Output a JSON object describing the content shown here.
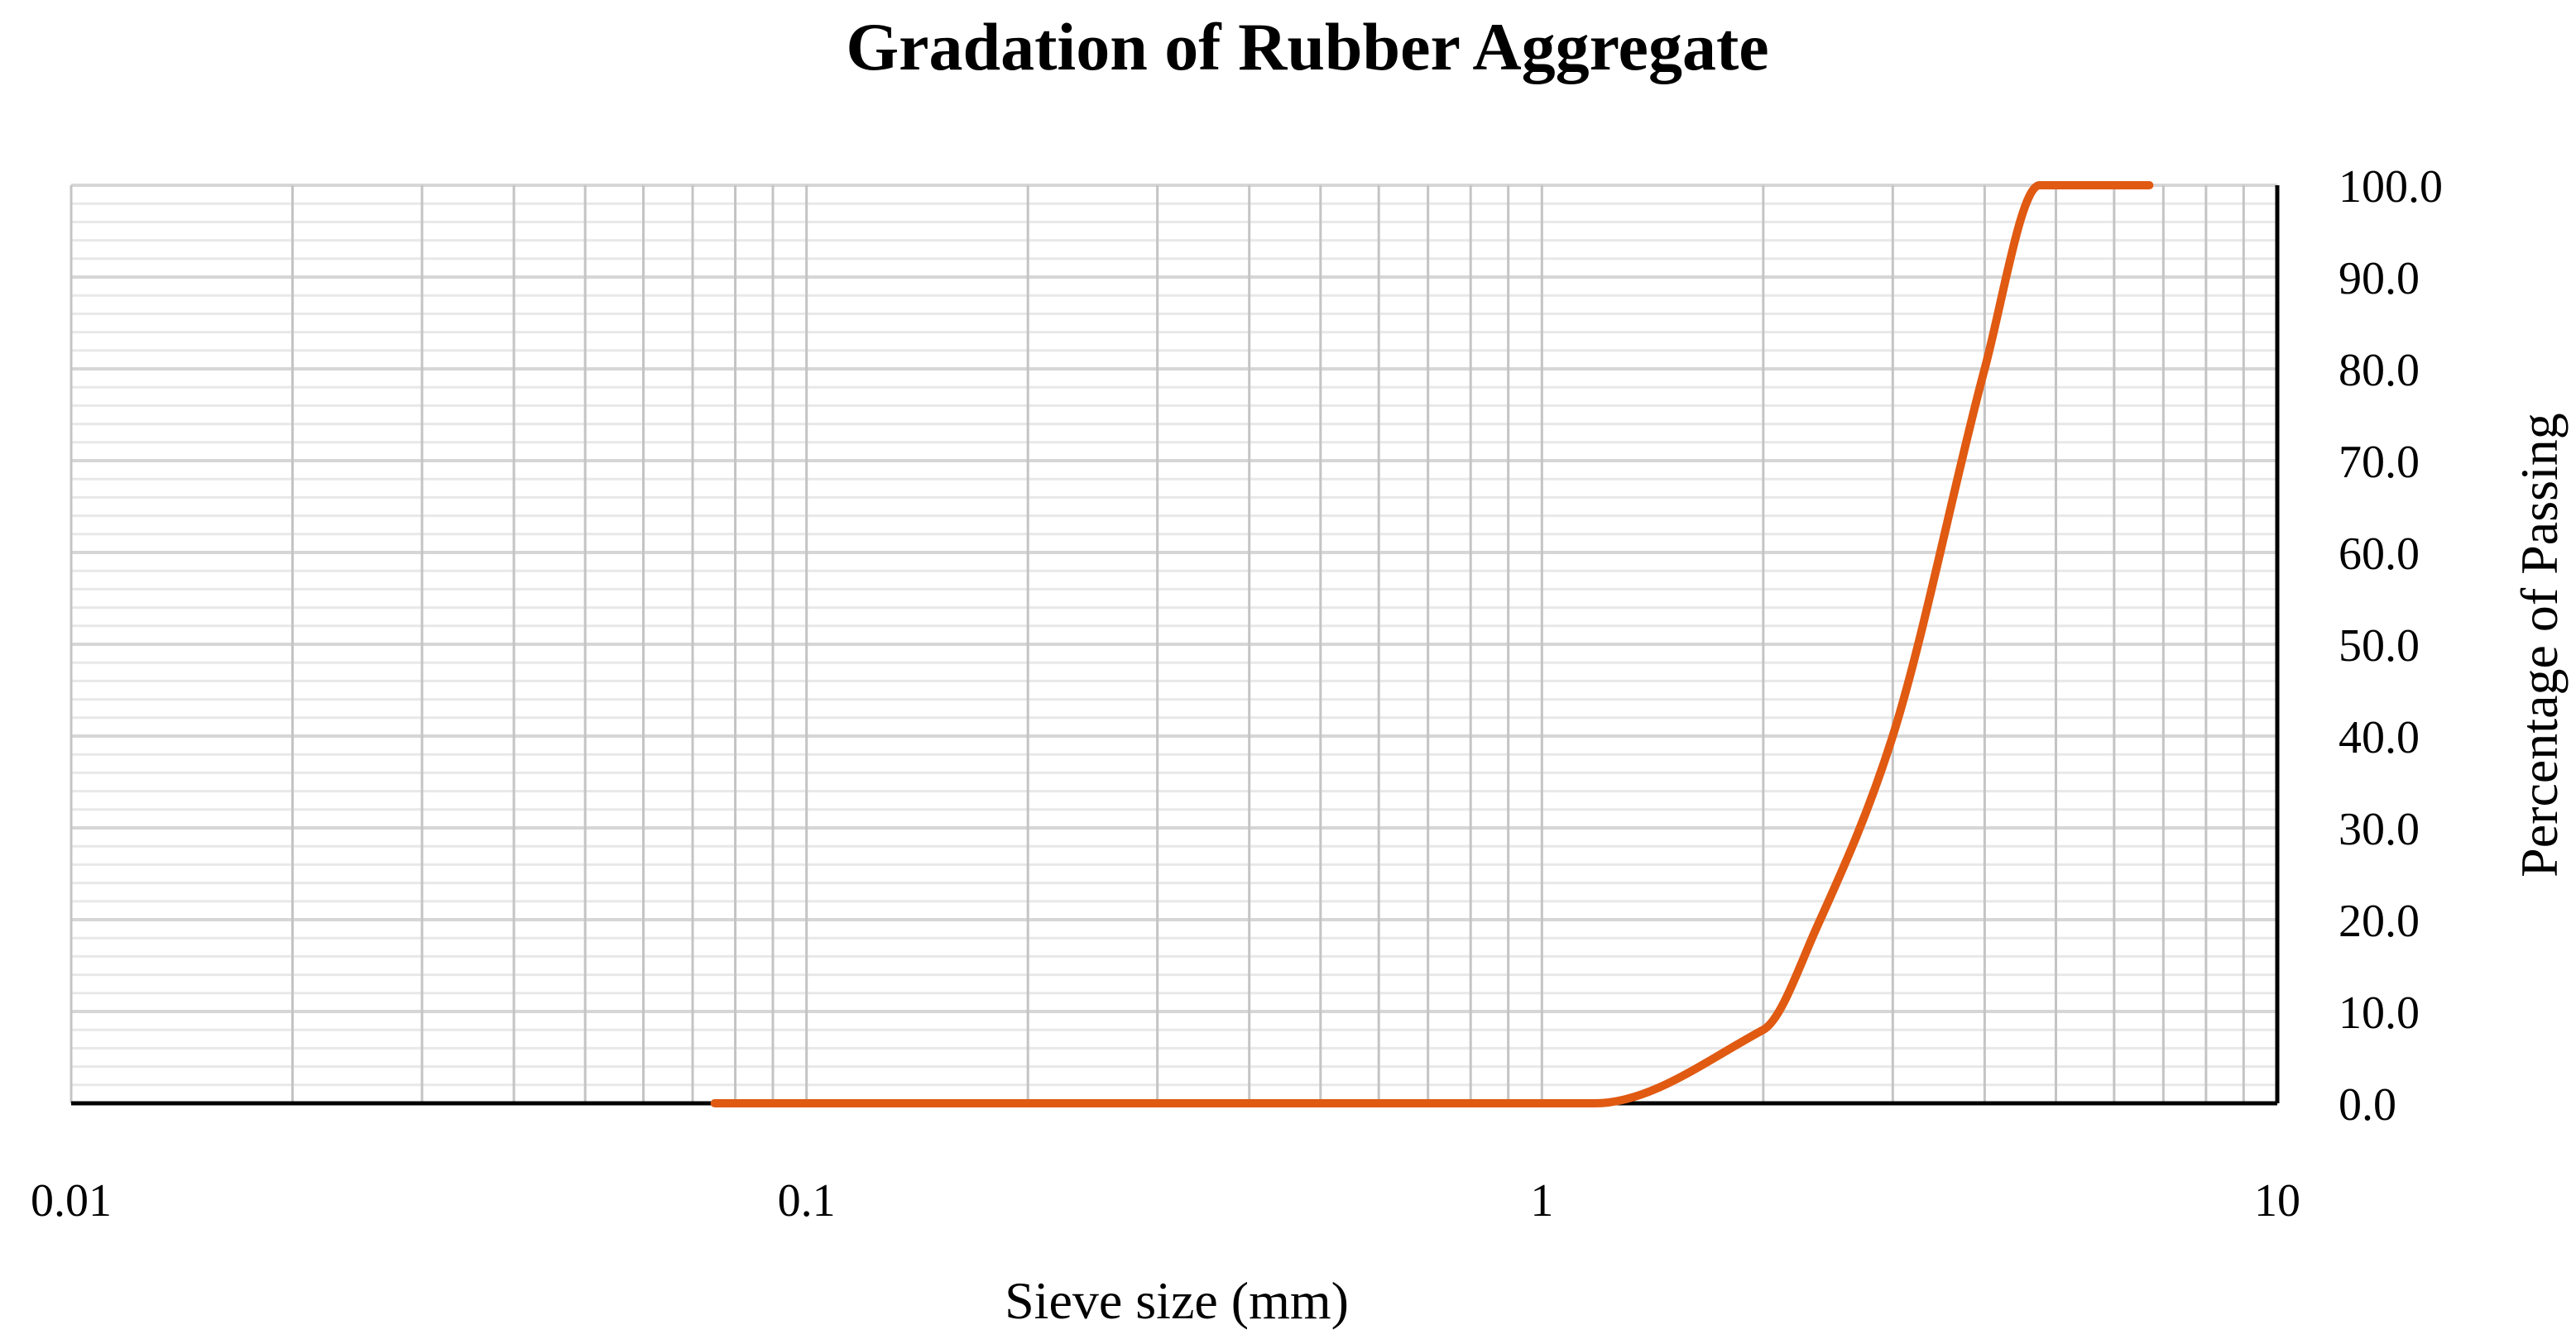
{
  "chart_data": {
    "type": "line",
    "title": "Gradation of Rubber Aggregate",
    "xlabel": "Sieve size (mm)",
    "ylabel": "Percentage of Passing",
    "x_scale": "log",
    "xlim": [
      0.01,
      10
    ],
    "ylim": [
      0,
      100
    ],
    "x_tick_labels": [
      "0.01",
      "0.1",
      "1",
      "10"
    ],
    "y_tick_labels": [
      "0.0",
      "10.0",
      "20.0",
      "30.0",
      "40.0",
      "50.0",
      "60.0",
      "70.0",
      "80.0",
      "90.0",
      "100.0"
    ],
    "grid": true,
    "y_axis_side": "right",
    "series": [
      {
        "color": "#E05A12",
        "x": [
          0.075,
          0.15,
          0.3,
          0.6,
          1.18,
          2.0,
          2.36,
          3.0,
          4.0,
          4.75,
          6.7
        ],
        "y": [
          0,
          0,
          0,
          0,
          0,
          8,
          19,
          40,
          80,
          100,
          100
        ]
      }
    ]
  }
}
